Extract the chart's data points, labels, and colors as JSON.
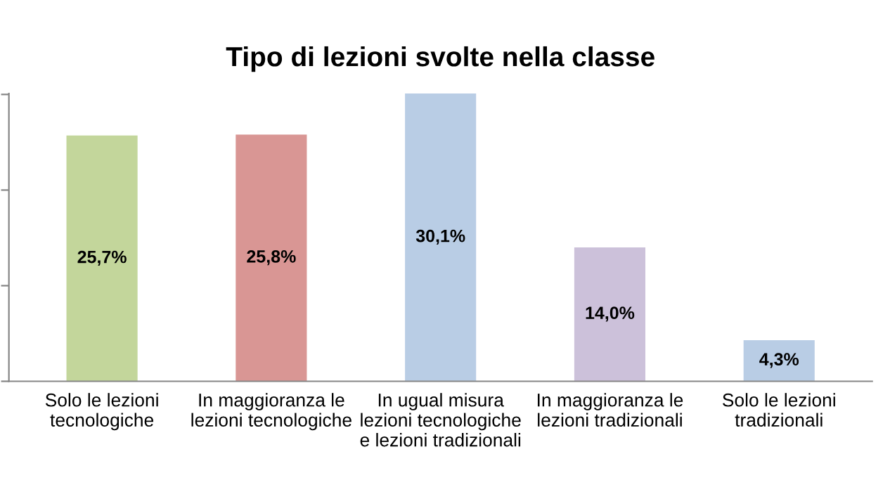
{
  "chart_data": {
    "type": "bar",
    "title": "Tipo di lezioni svolte nella classe",
    "categories": [
      "Solo le lezioni\ntecnologiche",
      "In maggioranza le\nlezioni tecnologiche",
      "In ugual misura\nlezioni tecnologiche\ne lezioni tradizionali",
      "In maggioranza le\nlezioni tradizionali",
      "Solo le lezioni\ntradizionali"
    ],
    "values": [
      25.7,
      25.8,
      30.1,
      14.0,
      4.3
    ],
    "colors": [
      "#c3d69b",
      "#d99694",
      "#b9cde5",
      "#ccc1da",
      "#b9cde5"
    ],
    "value_labels": [
      "25,7%",
      "25,8%",
      "30,1%",
      "14,0%",
      "4,3%"
    ],
    "ylim": [
      0,
      30.1
    ],
    "yticks": [
      {
        "value": 0,
        "label": null
      },
      {
        "value": 10,
        "label": null
      },
      {
        "value": 20,
        "label": null
      },
      {
        "value": 30,
        "label": null
      }
    ],
    "grid": false,
    "legend": false
  }
}
